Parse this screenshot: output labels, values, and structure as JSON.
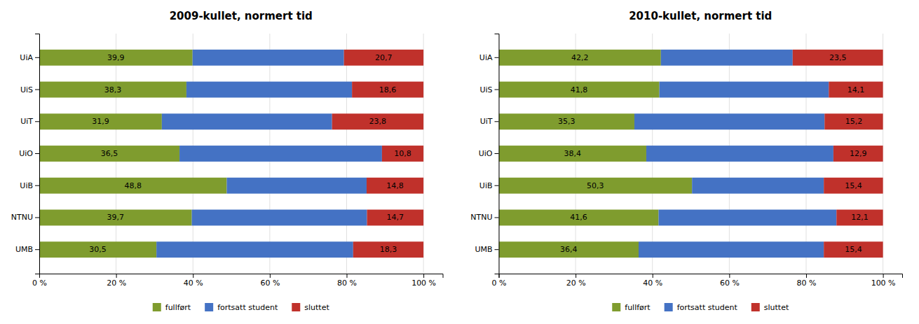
{
  "chart_data": [
    {
      "type": "bar",
      "orientation": "horizontal",
      "stacked": true,
      "title": "2009-kullet, normert tid",
      "categories": [
        "UiA",
        "UiS",
        "UiT",
        "UiO",
        "UiB",
        "NTNU",
        "UMB"
      ],
      "series": [
        {
          "name": "fullført",
          "color": "#7f9c2e",
          "data_labels": true,
          "values": [
            39.9,
            38.3,
            31.9,
            36.5,
            48.8,
            39.7,
            30.5
          ],
          "value_labels": [
            "39,9",
            "38,3",
            "31,9",
            "36,5",
            "48,8",
            "39,7",
            "30,5"
          ]
        },
        {
          "name": "fortsatt student",
          "color": "#4472c4",
          "data_labels": false,
          "values": [
            39.4,
            43.1,
            44.3,
            52.7,
            36.4,
            45.6,
            51.2
          ]
        },
        {
          "name": "sluttet",
          "color": "#c0312b",
          "data_labels": true,
          "values": [
            20.7,
            18.6,
            23.8,
            10.8,
            14.8,
            14.7,
            18.3
          ],
          "value_labels": [
            "20,7",
            "18,6",
            "23,8",
            "10,8",
            "14,8",
            "14,7",
            "18,3"
          ]
        }
      ],
      "xlim": [
        0,
        105
      ],
      "xticks": [
        {
          "value": 0,
          "label": "0 %"
        },
        {
          "value": 20,
          "label": "20 %"
        },
        {
          "value": 40,
          "label": "40 %"
        },
        {
          "value": 60,
          "label": "60 %"
        },
        {
          "value": 80,
          "label": "80 %"
        },
        {
          "value": 100,
          "label": "100 %"
        }
      ],
      "grid": true,
      "legend": "bottom"
    },
    {
      "type": "bar",
      "orientation": "horizontal",
      "stacked": true,
      "title": "2010-kullet, normert tid",
      "categories": [
        "UiA",
        "UiS",
        "UiT",
        "UiO",
        "UiB",
        "NTNU",
        "UMB"
      ],
      "series": [
        {
          "name": "fullført",
          "color": "#7f9c2e",
          "data_labels": true,
          "values": [
            42.2,
            41.8,
            35.3,
            38.4,
            50.3,
            41.6,
            36.4
          ],
          "value_labels": [
            "42,2",
            "41,8",
            "35,3",
            "38,4",
            "50,3",
            "41,6",
            "36,4"
          ]
        },
        {
          "name": "fortsatt student",
          "color": "#4472c4",
          "data_labels": false,
          "values": [
            34.3,
            44.1,
            49.5,
            48.7,
            34.3,
            46.3,
            48.2
          ]
        },
        {
          "name": "sluttet",
          "color": "#c0312b",
          "data_labels": true,
          "values": [
            23.5,
            14.1,
            15.2,
            12.9,
            15.4,
            12.1,
            15.4
          ],
          "value_labels": [
            "23,5",
            "14,1",
            "15,2",
            "12,9",
            "15,4",
            "12,1",
            "15,4"
          ]
        }
      ],
      "xlim": [
        0,
        105
      ],
      "xticks": [
        {
          "value": 0,
          "label": "0 %"
        },
        {
          "value": 20,
          "label": "20 %"
        },
        {
          "value": 40,
          "label": "40 %"
        },
        {
          "value": 60,
          "label": "60 %"
        },
        {
          "value": 80,
          "label": "80 %"
        },
        {
          "value": 100,
          "label": "100 %"
        }
      ],
      "grid": true,
      "legend": "bottom"
    }
  ]
}
